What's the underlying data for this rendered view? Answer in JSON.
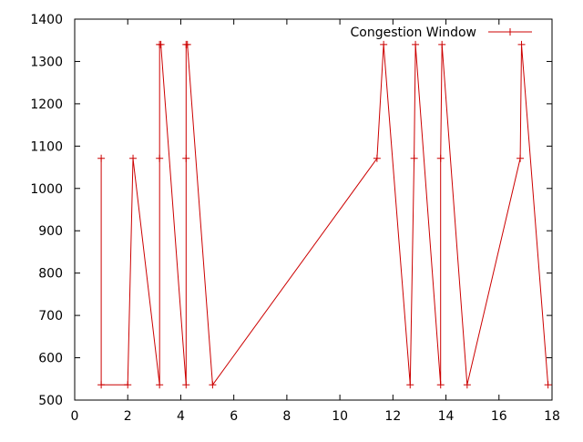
{
  "chart_data": {
    "type": "line",
    "title": "",
    "xlabel": "",
    "ylabel": "",
    "xlim": [
      0,
      18
    ],
    "ylim": [
      500,
      1400
    ],
    "x_ticks": [
      0,
      2,
      4,
      6,
      8,
      10,
      12,
      14,
      16,
      18
    ],
    "y_ticks": [
      500,
      600,
      700,
      800,
      900,
      1000,
      1100,
      1200,
      1300,
      1400
    ],
    "grid": false,
    "legend": {
      "position": "top-right",
      "entries": [
        "Congestion Window"
      ]
    },
    "series": [
      {
        "name": "Congestion Window",
        "color": "#cc0000",
        "marker": "plus",
        "points": [
          [
            1.0,
            1071
          ],
          [
            1.0,
            536
          ],
          [
            2.0,
            536
          ],
          [
            2.2,
            1071
          ],
          [
            3.2,
            536
          ],
          [
            3.2,
            1071
          ],
          [
            3.2,
            1340
          ],
          [
            3.25,
            1340
          ],
          [
            4.2,
            536
          ],
          [
            4.2,
            1071
          ],
          [
            4.2,
            1340
          ],
          [
            4.25,
            1340
          ],
          [
            5.2,
            536
          ],
          [
            11.4,
            1071
          ],
          [
            11.65,
            1340
          ],
          [
            12.65,
            536
          ],
          [
            12.8,
            1071
          ],
          [
            12.85,
            1340
          ],
          [
            13.8,
            536
          ],
          [
            13.8,
            1071
          ],
          [
            13.85,
            1340
          ],
          [
            14.8,
            536
          ],
          [
            16.8,
            1071
          ],
          [
            16.85,
            1340
          ],
          [
            17.85,
            536
          ]
        ]
      }
    ]
  }
}
